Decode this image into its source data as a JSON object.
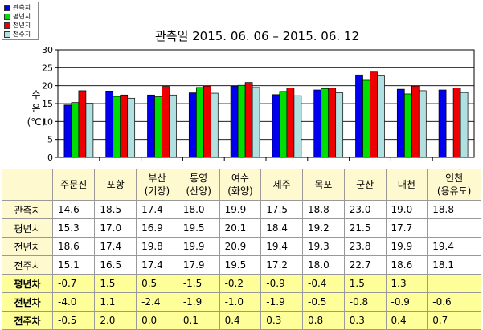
{
  "title": "관측일 2015. 06. 06 – 2015. 06. 12",
  "ylabel_lines": [
    "수",
    "온",
    "(℃)"
  ],
  "legend": [
    {
      "name": "관측치",
      "color": "#0000ee"
    },
    {
      "name": "평년치",
      "color": "#00dd00"
    },
    {
      "name": "전년치",
      "color": "#ee0000"
    },
    {
      "name": "전주치",
      "color": "#b0e0e0"
    }
  ],
  "table": {
    "headers": [
      "주문진",
      "포항",
      "부산\n(기장)",
      "통영\n(산양)",
      "여수\n(화양)",
      "제주",
      "목포",
      "군산",
      "대천",
      "인천\n(용유도)"
    ],
    "rows": [
      {
        "label": "관측치",
        "values": [
          "14.6",
          "18.5",
          "17.4",
          "18.0",
          "19.9",
          "17.5",
          "18.8",
          "23.0",
          "19.0",
          "18.8"
        ]
      },
      {
        "label": "평년치",
        "values": [
          "15.3",
          "17.0",
          "16.9",
          "19.5",
          "20.1",
          "18.4",
          "19.2",
          "21.5",
          "17.7",
          ""
        ]
      },
      {
        "label": "전년치",
        "values": [
          "18.6",
          "17.4",
          "19.8",
          "19.9",
          "20.9",
          "19.4",
          "19.3",
          "23.8",
          "19.9",
          "19.4"
        ]
      },
      {
        "label": "전주치",
        "values": [
          "15.1",
          "16.5",
          "17.4",
          "17.9",
          "19.5",
          "17.2",
          "18.0",
          "22.7",
          "18.6",
          "18.1"
        ]
      },
      {
        "label": "평년차",
        "values": [
          "-0.7",
          "1.5",
          "0.5",
          "-1.5",
          "-0.2",
          "-0.9",
          "-0.4",
          "1.5",
          "1.3",
          ""
        ]
      },
      {
        "label": "전년차",
        "values": [
          "-4.0",
          "1.1",
          "-2.4",
          "-1.9",
          "-1.0",
          "-1.9",
          "-0.5",
          "-0.8",
          "-0.9",
          "-0.6"
        ]
      },
      {
        "label": "전주차",
        "values": [
          "-0.5",
          "2.0",
          "0.0",
          "0.1",
          "0.4",
          "0.3",
          "0.8",
          "0.3",
          "0.4",
          "0.7"
        ]
      }
    ]
  },
  "chart_data": {
    "type": "bar",
    "title": "관측일 2015. 06. 06 – 2015. 06. 12",
    "xlabel": "",
    "ylabel": "수온(℃)",
    "ylim": [
      0,
      30
    ],
    "yticks": [
      0,
      5,
      10,
      15,
      20,
      25,
      30
    ],
    "grid": true,
    "legend_position": "top-left",
    "categories": [
      "주문진",
      "포항",
      "부산(기장)",
      "통영(산양)",
      "여수(화양)",
      "제주",
      "목포",
      "군산",
      "대천",
      "인천(용유도)"
    ],
    "series": [
      {
        "name": "관측치",
        "color": "#0000ee",
        "values": [
          14.6,
          18.5,
          17.4,
          18.0,
          19.9,
          17.5,
          18.8,
          23.0,
          19.0,
          18.8
        ]
      },
      {
        "name": "평년치",
        "color": "#00dd00",
        "values": [
          15.3,
          17.0,
          16.9,
          19.5,
          20.1,
          18.4,
          19.2,
          21.5,
          17.7,
          null
        ]
      },
      {
        "name": "전년치",
        "color": "#ee0000",
        "values": [
          18.6,
          17.4,
          19.8,
          19.9,
          20.9,
          19.4,
          19.3,
          23.8,
          19.9,
          19.4
        ]
      },
      {
        "name": "전주치",
        "color": "#b0e0e0",
        "values": [
          15.1,
          16.5,
          17.4,
          17.9,
          19.5,
          17.2,
          18.0,
          22.7,
          18.6,
          18.1
        ]
      }
    ]
  }
}
